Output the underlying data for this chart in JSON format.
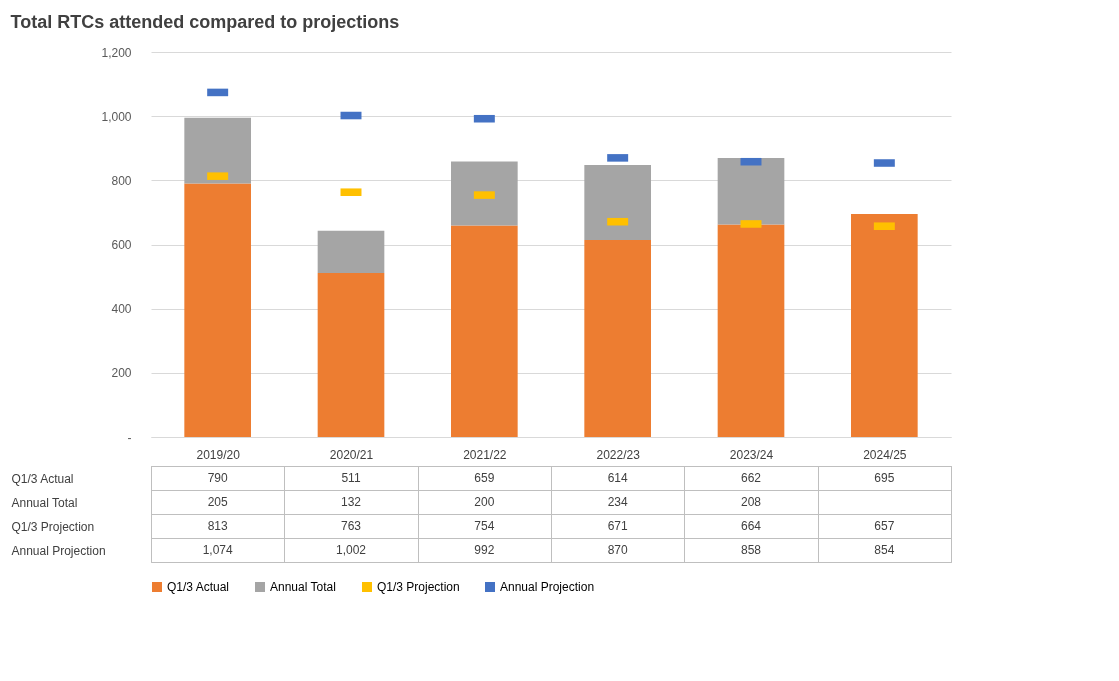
{
  "chart_data": {
    "type": "bar",
    "title": "Total RTCs attended compared to projections",
    "categories": [
      "2019/20",
      "2020/21",
      "2021/22",
      "2022/23",
      "2023/24",
      "2024/25"
    ],
    "stacked": true,
    "data_labels": true,
    "legend": "bottom",
    "grid": "y",
    "ylim": [
      0,
      1200
    ],
    "yticks": [
      {
        "value": 0,
        "label": "-"
      },
      200,
      400,
      600,
      800,
      {
        "value": 1000,
        "label": "1,000"
      },
      {
        "value": 1200,
        "label": "1,200"
      }
    ],
    "series": [
      {
        "name": "Q1/3 Actual",
        "color": "#ed7d31",
        "values": [
          790,
          511,
          659,
          614,
          662,
          695
        ]
      },
      {
        "name": "Annual Total",
        "color": "#a5a5a5",
        "values": [
          205,
          132,
          200,
          234,
          208,
          null
        ]
      },
      {
        "name": "Q1/3 Projection",
        "type": "scatter",
        "color": "#ffc000",
        "values": [
          813,
          763,
          754,
          671,
          664,
          657
        ]
      },
      {
        "name": "Annual Projection",
        "type": "scatter",
        "color": "#4472c4",
        "values": [
          1074,
          1002,
          992,
          870,
          858,
          854
        ],
        "value_labels": [
          "1,074",
          "1,002",
          "992",
          "870",
          "858",
          "854"
        ]
      }
    ]
  }
}
